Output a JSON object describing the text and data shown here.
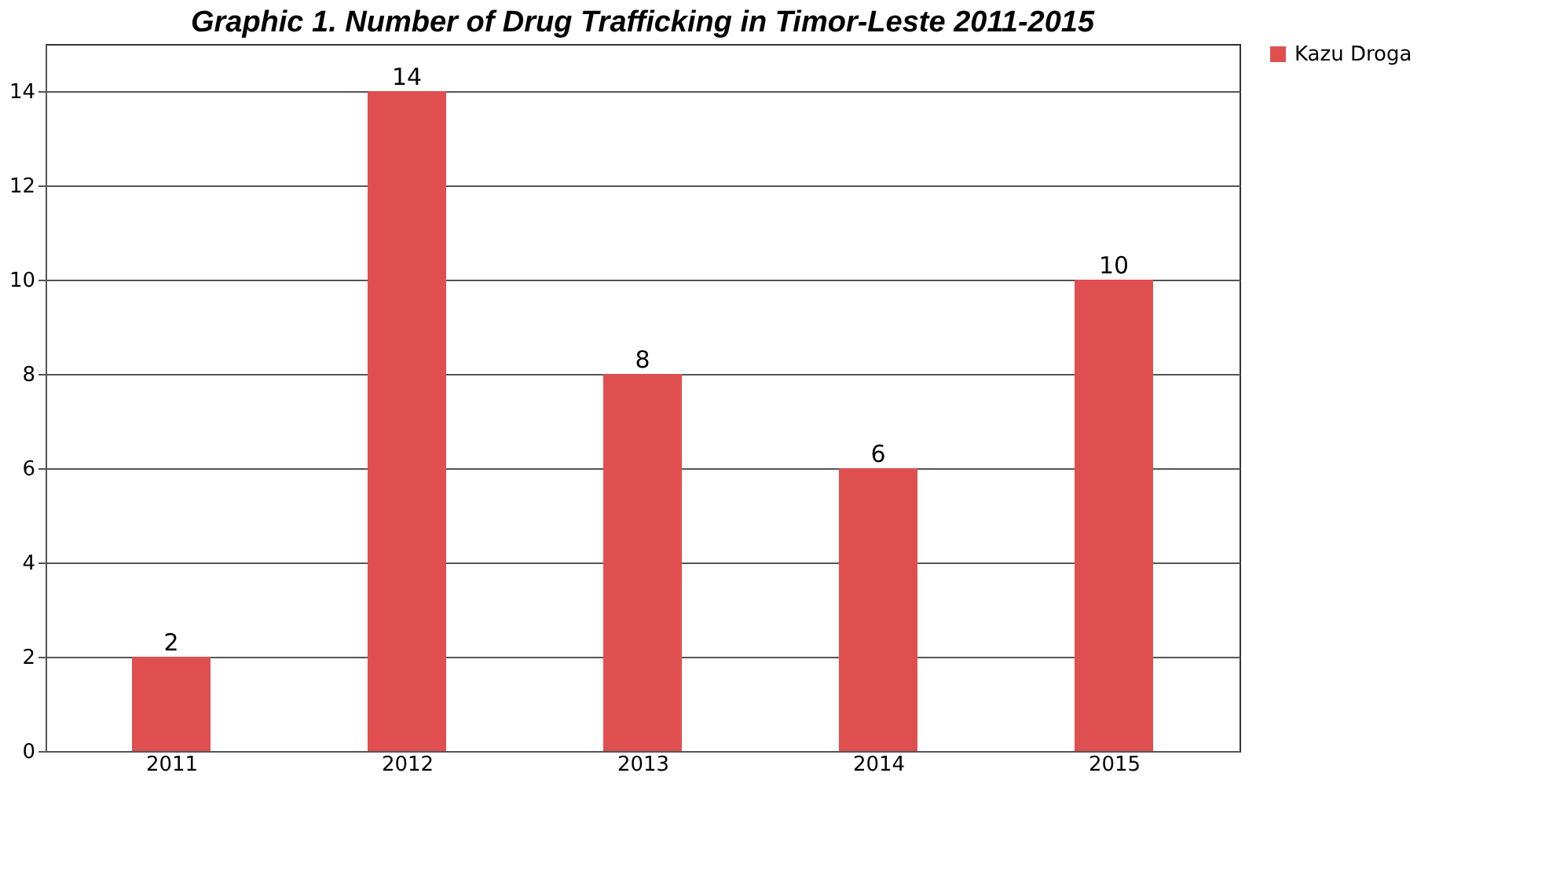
{
  "chart_data": {
    "type": "bar",
    "title": "Graphic 1. Number of Drug Trafficking in Timor-Leste 2011-2015",
    "categories": [
      "2011",
      "2012",
      "2013",
      "2014",
      "2015"
    ],
    "series": [
      {
        "name": "Kazu Droga",
        "color": "#e04f4f",
        "values": [
          2,
          14,
          8,
          6,
          10
        ]
      }
    ],
    "ylim": [
      0,
      15
    ],
    "yticks": [
      0,
      2,
      4,
      6,
      8,
      10,
      12,
      14
    ],
    "grid": "y",
    "legend": "right",
    "data_labels": true
  }
}
